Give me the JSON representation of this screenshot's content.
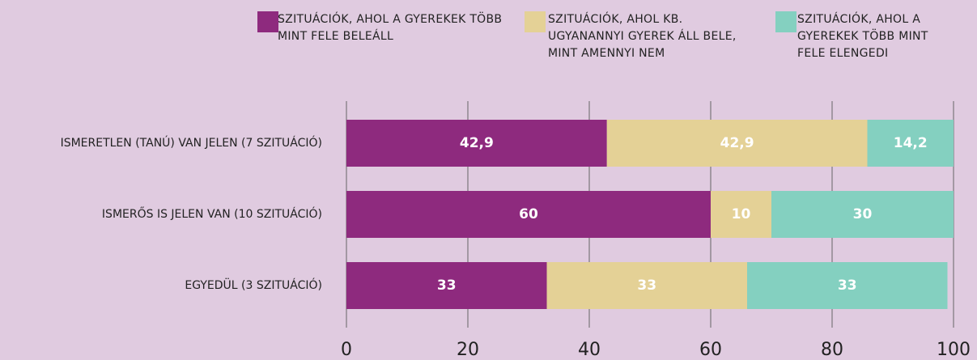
{
  "chart_data": {
    "type": "stacked_barh",
    "categories": [
      "ISMERETLEN (TANÚ) VAN JELEN (7 SZITUÁCIÓ)",
      "ISMERŐS IS JELEN VAN (10 SZITUÁCIÓ)",
      "EGYEDÜL (3 SZITUÁCIÓ)"
    ],
    "series": [
      {
        "name": "SZITUÁCIÓK, AHOL A GYEREKEK TÖBB MINT FELE BELEÁLL",
        "color": "#8e2a7e",
        "values": [
          42.9,
          60,
          33
        ],
        "value_labels": [
          "42,9",
          "60",
          "33"
        ]
      },
      {
        "name": "SZITUÁCIÓK, AHOL KB. UGYANANNYI GYEREK ÁLL BELE, MINT AMENNYI NEM",
        "color": "#e4d196",
        "values": [
          42.9,
          10,
          33
        ],
        "value_labels": [
          "42,9",
          "10",
          "33"
        ]
      },
      {
        "name": "SZITUÁCIÓK, AHOL A GYEREKEK TÖBB MINT FELE ELENGEDI",
        "color": "#84d0c0",
        "values": [
          14.2,
          30,
          33
        ],
        "value_labels": [
          "14,2",
          "30",
          "33"
        ]
      }
    ],
    "xlim": [
      0,
      100
    ],
    "xticks": [
      0,
      20,
      40,
      60,
      80,
      100
    ],
    "grid": true
  }
}
